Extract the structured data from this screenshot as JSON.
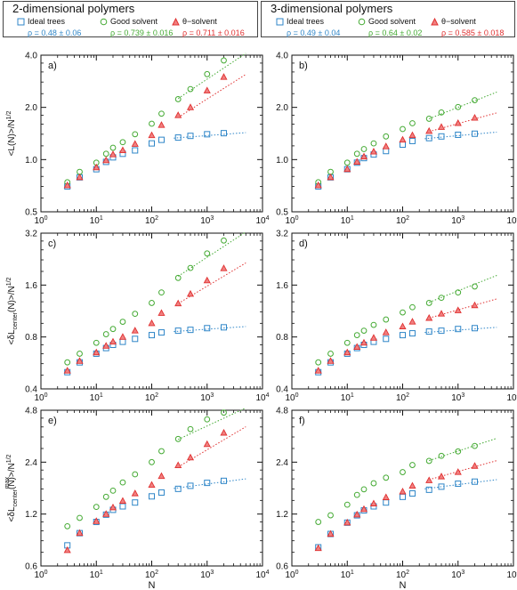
{
  "colors": {
    "ideal": "#2f86c8",
    "good": "#44aa33",
    "theta": "#e03030",
    "axis": "#111111"
  },
  "legends": [
    {
      "title": "2-dimensional polymers",
      "ideal": {
        "label": "Ideal trees",
        "rho": "ρ = 0.48 ± 0.06"
      },
      "good": {
        "label": "Good solvent",
        "rho": "ρ = 0.739 ± 0.016"
      },
      "theta": {
        "label": "θ−solvent",
        "rho": "ρ = 0.711 ± 0.016"
      }
    },
    {
      "title": "3-dimensional polymers",
      "ideal": {
        "label": "Ideal trees",
        "rho": "ρ = 0.49 ± 0.04"
      },
      "good": {
        "label": "Good solvent",
        "rho": "ρ = 0.64 ± 0.02"
      },
      "theta": {
        "label": "θ−solvent",
        "rho": "ρ = 0.585 ± 0.018"
      }
    }
  ],
  "chart_data": [
    {
      "type": "scatter",
      "panel": "a)",
      "xlabel": "",
      "ylabel": "<L(N)>/N^1/2",
      "xscale": "log",
      "yscale": "log",
      "xlim": [
        1,
        10000
      ],
      "ylim": [
        0.5,
        4.0
      ],
      "xticks": [
        "10^0",
        "10^1",
        "10^2",
        "10^3",
        "10^4"
      ],
      "yticks": [
        "0.5",
        "1.0",
        "2.0",
        "4.0"
      ],
      "x": [
        3,
        5,
        10,
        15,
        20,
        30,
        50,
        100,
        150,
        300,
        500,
        1000,
        2000
      ],
      "series": [
        {
          "name": "Ideal trees",
          "marker": "square",
          "values": [
            0.7,
            0.79,
            0.88,
            0.97,
            1.03,
            1.08,
            1.13,
            1.24,
            1.3,
            1.34,
            1.37,
            1.4,
            1.42
          ],
          "fit": {
            "x": [
              250,
              5000
            ],
            "y": [
              1.33,
              1.43
            ]
          }
        },
        {
          "name": "Good solvent",
          "marker": "circle",
          "values": [
            0.74,
            0.85,
            0.96,
            1.08,
            1.17,
            1.26,
            1.4,
            1.61,
            1.84,
            2.23,
            2.55,
            3.11,
            3.73
          ],
          "fit": {
            "x": [
              300,
              5000
            ],
            "y": [
              2.25,
              4.1
            ]
          }
        },
        {
          "name": "θ−solvent",
          "marker": "triangle",
          "values": [
            0.71,
            0.79,
            0.9,
            0.99,
            1.07,
            1.13,
            1.23,
            1.38,
            1.58,
            1.8,
            2.0,
            2.5,
            2.99
          ],
          "fit": {
            "x": [
              300,
              5000
            ],
            "y": [
              1.75,
              3.1
            ]
          }
        }
      ]
    },
    {
      "type": "scatter",
      "panel": "b)",
      "xlabel": "",
      "ylabel": "",
      "xscale": "log",
      "yscale": "log",
      "xlim": [
        1,
        10000
      ],
      "ylim": [
        0.5,
        4.0
      ],
      "xticks": [
        "10^0",
        "10^1",
        "10^2",
        "10^3",
        "10^4"
      ],
      "yticks": [
        "0.5",
        "1.0",
        "2.0",
        "4.0"
      ],
      "x": [
        3,
        5,
        10,
        15,
        20,
        30,
        50,
        100,
        150,
        300,
        500,
        1000,
        2000
      ],
      "series": [
        {
          "name": "Ideal trees",
          "marker": "square",
          "values": [
            0.7,
            0.79,
            0.88,
            0.96,
            1.02,
            1.07,
            1.12,
            1.22,
            1.28,
            1.33,
            1.36,
            1.39,
            1.41
          ],
          "fit": {
            "x": [
              250,
              5000
            ],
            "y": [
              1.32,
              1.44
            ]
          }
        },
        {
          "name": "Good solvent",
          "marker": "circle",
          "values": [
            0.74,
            0.85,
            0.96,
            1.08,
            1.15,
            1.24,
            1.36,
            1.5,
            1.62,
            1.72,
            1.87,
            2.01,
            2.2
          ],
          "fit": {
            "x": [
              300,
              5000
            ],
            "y": [
              1.72,
              2.45
            ]
          }
        },
        {
          "name": "θ−solvent",
          "marker": "triangle",
          "values": [
            0.71,
            0.79,
            0.88,
            0.97,
            1.04,
            1.11,
            1.19,
            1.3,
            1.38,
            1.46,
            1.54,
            1.62,
            1.74
          ],
          "fit": {
            "x": [
              300,
              5000
            ],
            "y": [
              1.45,
              1.86
            ]
          }
        }
      ]
    },
    {
      "type": "scatter",
      "panel": "c)",
      "xlabel": "",
      "ylabel": "<δL_center(N)>/N^1/2",
      "xscale": "log",
      "yscale": "log",
      "xlim": [
        1,
        10000
      ],
      "ylim": [
        0.4,
        3.2
      ],
      "xticks": [
        "10^0",
        "10^1",
        "10^2",
        "10^3",
        "10^4"
      ],
      "yticks": [
        "0.4",
        "0.8",
        "1.6",
        "3.2"
      ],
      "x": [
        3,
        5,
        10,
        15,
        20,
        30,
        50,
        100,
        150,
        300,
        500,
        1000,
        2000
      ],
      "series": [
        {
          "name": "Ideal trees",
          "marker": "square",
          "values": [
            0.5,
            0.57,
            0.64,
            0.69,
            0.72,
            0.75,
            0.78,
            0.82,
            0.85,
            0.87,
            0.88,
            0.9,
            0.91
          ],
          "fit": {
            "x": [
              250,
              5000
            ],
            "y": [
              0.86,
              0.92
            ]
          }
        },
        {
          "name": "Good solvent",
          "marker": "circle",
          "values": [
            0.57,
            0.64,
            0.74,
            0.83,
            0.89,
            0.98,
            1.09,
            1.26,
            1.45,
            1.76,
            2.01,
            2.44,
            2.9
          ],
          "fit": {
            "x": [
              300,
              5000
            ],
            "y": [
              1.8,
              3.25
            ]
          }
        },
        {
          "name": "θ−solvent",
          "marker": "triangle",
          "values": [
            0.51,
            0.58,
            0.65,
            0.71,
            0.75,
            0.8,
            0.87,
            0.96,
            1.1,
            1.25,
            1.42,
            1.7,
            2.0
          ],
          "fit": {
            "x": [
              300,
              5000
            ],
            "y": [
              1.25,
              2.15
            ]
          }
        }
      ]
    },
    {
      "type": "scatter",
      "panel": "d)",
      "xlabel": "",
      "ylabel": "",
      "xscale": "log",
      "yscale": "log",
      "xlim": [
        1,
        10000
      ],
      "ylim": [
        0.4,
        3.2
      ],
      "xticks": [
        "10^0",
        "10^1",
        "10^2",
        "10^3",
        "10^4"
      ],
      "yticks": [
        "0.4",
        "0.8",
        "1.6",
        "3.2"
      ],
      "x": [
        3,
        5,
        10,
        15,
        20,
        30,
        50,
        100,
        150,
        300,
        500,
        1000,
        2000
      ],
      "series": [
        {
          "name": "Ideal trees",
          "marker": "square",
          "values": [
            0.5,
            0.57,
            0.64,
            0.69,
            0.72,
            0.75,
            0.78,
            0.82,
            0.84,
            0.86,
            0.87,
            0.89,
            0.9
          ],
          "fit": {
            "x": [
              250,
              5000
            ],
            "y": [
              0.85,
              0.91
            ]
          }
        },
        {
          "name": "Good solvent",
          "marker": "circle",
          "values": [
            0.57,
            0.64,
            0.74,
            0.82,
            0.87,
            0.94,
            1.01,
            1.11,
            1.19,
            1.26,
            1.35,
            1.45,
            1.57
          ],
          "fit": {
            "x": [
              300,
              5000
            ],
            "y": [
              1.27,
              1.82
            ]
          }
        },
        {
          "name": "θ−solvent",
          "marker": "triangle",
          "values": [
            0.51,
            0.58,
            0.65,
            0.7,
            0.74,
            0.79,
            0.85,
            0.92,
            0.98,
            1.03,
            1.09,
            1.14,
            1.22
          ],
          "fit": {
            "x": [
              300,
              5000
            ],
            "y": [
              1.03,
              1.33
            ]
          }
        }
      ]
    },
    {
      "type": "scatter",
      "panel": "e)",
      "xlabel": "N",
      "ylabel": "<δL^max_center(N)>/N^1/2",
      "xscale": "log",
      "yscale": "log",
      "xlim": [
        1,
        10000
      ],
      "ylim": [
        0.6,
        4.8
      ],
      "xticks": [
        "10^0",
        "10^1",
        "10^2",
        "10^3",
        "10^4"
      ],
      "yticks": [
        "0.6",
        "1.2",
        "2.4",
        "4.8"
      ],
      "x": [
        3,
        5,
        10,
        15,
        20,
        30,
        50,
        100,
        150,
        300,
        500,
        1000,
        2000
      ],
      "series": [
        {
          "name": "Ideal trees",
          "marker": "square",
          "values": [
            0.79,
            0.93,
            1.08,
            1.19,
            1.27,
            1.33,
            1.4,
            1.52,
            1.6,
            1.68,
            1.75,
            1.82,
            1.87
          ],
          "fit": {
            "x": [
              250,
              5000
            ],
            "y": [
              1.69,
              1.92
            ]
          }
        },
        {
          "name": "Good solvent",
          "marker": "circle",
          "values": [
            1.02,
            1.14,
            1.32,
            1.51,
            1.64,
            1.83,
            2.04,
            2.4,
            2.78,
            3.27,
            3.73,
            4.25,
            4.65
          ],
          "fit": {
            "x": [
              300,
              5000
            ],
            "y": [
              3.25,
              4.95
            ]
          }
        },
        {
          "name": "θ−solvent",
          "marker": "triangle",
          "values": [
            0.74,
            0.93,
            1.09,
            1.2,
            1.31,
            1.43,
            1.58,
            1.77,
            1.99,
            2.3,
            2.55,
            3.05,
            3.55
          ],
          "fit": {
            "x": [
              300,
              5000
            ],
            "y": [
              2.25,
              3.85
            ]
          }
        }
      ]
    },
    {
      "type": "scatter",
      "panel": "f)",
      "xlabel": "N",
      "ylabel": "",
      "xscale": "log",
      "yscale": "log",
      "xlim": [
        1,
        10000
      ],
      "ylim": [
        0.6,
        4.8
      ],
      "xticks": [
        "10^0",
        "10^1",
        "10^2",
        "10^3",
        "10^4"
      ],
      "yticks": [
        "0.6",
        "1.2",
        "2.4",
        "4.8"
      ],
      "x": [
        3,
        5,
        10,
        15,
        20,
        30,
        50,
        100,
        150,
        300,
        500,
        1000,
        2000
      ],
      "series": [
        {
          "name": "Ideal trees",
          "marker": "square",
          "values": [
            0.77,
            0.92,
            1.07,
            1.18,
            1.26,
            1.33,
            1.4,
            1.51,
            1.58,
            1.66,
            1.73,
            1.8,
            1.85
          ],
          "fit": {
            "x": [
              250,
              5000
            ],
            "y": [
              1.68,
              1.9
            ]
          }
        },
        {
          "name": "Good solvent",
          "marker": "circle",
          "values": [
            1.08,
            1.18,
            1.36,
            1.55,
            1.67,
            1.81,
            1.95,
            2.1,
            2.31,
            2.44,
            2.61,
            2.77,
            2.98
          ],
          "fit": {
            "x": [
              300,
              5000
            ],
            "y": [
              2.45,
              3.3
            ]
          }
        },
        {
          "name": "θ−solvent",
          "marker": "triangle",
          "values": [
            0.76,
            0.92,
            1.07,
            1.19,
            1.28,
            1.38,
            1.5,
            1.62,
            1.75,
            1.88,
            1.98,
            2.1,
            2.28
          ],
          "fit": {
            "x": [
              300,
              5000
            ],
            "y": [
              1.9,
              2.45
            ]
          }
        }
      ]
    }
  ]
}
